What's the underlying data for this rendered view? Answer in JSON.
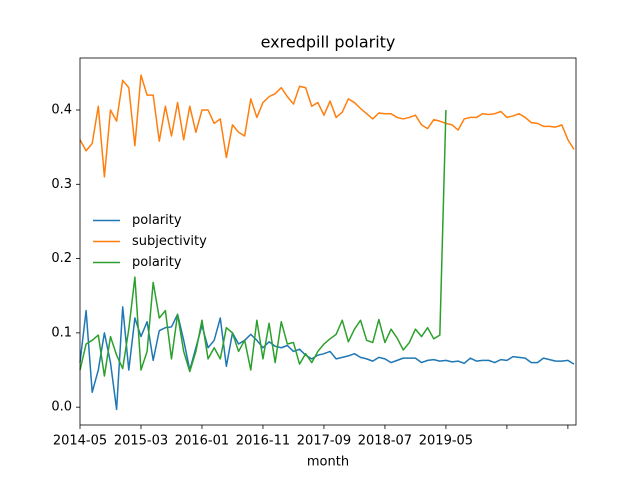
{
  "chart_data": {
    "type": "line",
    "title": "exredpill polarity",
    "xlabel": "month",
    "categories": [
      "2014-05",
      null,
      null,
      null,
      null,
      null,
      null,
      null,
      null,
      null,
      "2015-03",
      null,
      null,
      null,
      null,
      null,
      null,
      null,
      null,
      null,
      "2016-01",
      null,
      null,
      null,
      null,
      null,
      null,
      null,
      null,
      null,
      "2016-11",
      null,
      null,
      null,
      null,
      null,
      null,
      null,
      null,
      null,
      "2017-09",
      null,
      null,
      null,
      null,
      null,
      null,
      null,
      null,
      null,
      "2018-07",
      null,
      null,
      null,
      null,
      null,
      null,
      null,
      null,
      null,
      "2019-05",
      null,
      null,
      null,
      null,
      null,
      null,
      null,
      null,
      null,
      null,
      null,
      null,
      null,
      null,
      null,
      null,
      null,
      null,
      null,
      null,
      null
    ],
    "series": [
      {
        "name": "polarity",
        "color": "#1f77b4",
        "values": [
          0.06,
          0.13,
          0.02,
          0.05,
          0.1,
          0.06,
          -0.003,
          0.135,
          0.05,
          0.12,
          0.095,
          0.115,
          0.063,
          0.103,
          0.107,
          0.108,
          0.125,
          0.09,
          0.05,
          0.08,
          0.11,
          0.08,
          0.09,
          0.12,
          0.055,
          0.1,
          0.085,
          0.09,
          0.098,
          0.09,
          0.08,
          0.088,
          0.082,
          0.08,
          0.083,
          0.075,
          0.078,
          0.07,
          0.065,
          0.07,
          0.072,
          0.075,
          0.065,
          0.067,
          0.069,
          0.072,
          0.067,
          0.065,
          0.062,
          0.067,
          0.065,
          0.06,
          0.063,
          0.066,
          0.066,
          0.066,
          0.06,
          0.063,
          0.064,
          0.062,
          0.063,
          0.061,
          0.062,
          0.059,
          0.066,
          0.062,
          0.063,
          0.063,
          0.06,
          0.064,
          0.063,
          0.068,
          0.067,
          0.066,
          0.06,
          0.06,
          0.066,
          0.064,
          0.062,
          0.062,
          0.063,
          0.058
        ]
      },
      {
        "name": "subjectivity",
        "color": "#ff7f0e",
        "values": [
          0.36,
          0.345,
          0.355,
          0.405,
          0.31,
          0.4,
          0.385,
          0.44,
          0.43,
          0.352,
          0.447,
          0.42,
          0.42,
          0.358,
          0.405,
          0.365,
          0.41,
          0.36,
          0.405,
          0.37,
          0.4,
          0.4,
          0.382,
          0.388,
          0.336,
          0.38,
          0.37,
          0.365,
          0.415,
          0.39,
          0.41,
          0.418,
          0.422,
          0.43,
          0.418,
          0.408,
          0.432,
          0.43,
          0.405,
          0.41,
          0.393,
          0.412,
          0.39,
          0.397,
          0.415,
          0.41,
          0.402,
          0.395,
          0.388,
          0.396,
          0.395,
          0.395,
          0.39,
          0.388,
          0.39,
          0.393,
          0.38,
          0.375,
          0.387,
          0.385,
          0.382,
          0.38,
          0.373,
          0.388,
          0.39,
          0.39,
          0.395,
          0.394,
          0.395,
          0.398,
          0.39,
          0.392,
          0.395,
          0.39,
          0.383,
          0.382,
          0.378,
          0.378,
          0.377,
          0.38,
          0.36,
          0.347
        ]
      },
      {
        "name": "polarity",
        "color": "#2ca02c",
        "values": [
          0.05,
          0.085,
          0.09,
          0.097,
          0.042,
          0.095,
          0.07,
          0.052,
          0.105,
          0.175,
          0.05,
          0.075,
          0.168,
          0.12,
          0.13,
          0.065,
          0.125,
          0.075,
          0.048,
          0.075,
          0.117,
          0.065,
          0.08,
          0.065,
          0.107,
          0.1,
          0.075,
          0.09,
          0.05,
          0.117,
          0.065,
          0.113,
          0.06,
          0.115,
          0.085,
          0.087,
          0.058,
          0.072,
          0.06,
          0.075,
          0.085,
          0.092,
          0.098,
          0.117,
          0.088,
          0.105,
          0.117,
          0.09,
          0.087,
          0.118,
          0.087,
          0.105,
          0.093,
          0.077,
          0.087,
          0.105,
          0.095,
          0.107,
          0.092,
          0.097,
          0.4,
          null,
          null,
          null,
          null,
          null,
          null,
          null,
          null,
          null,
          null,
          null,
          null,
          null,
          null,
          null,
          null,
          null,
          null,
          null,
          null,
          null
        ]
      }
    ],
    "ylim": [
      -0.024,
      0.47
    ],
    "yticks": [
      {
        "value": 0,
        "label": "0.0"
      },
      0.1,
      0.2,
      0.3,
      0.4
    ],
    "legend": "center left"
  }
}
